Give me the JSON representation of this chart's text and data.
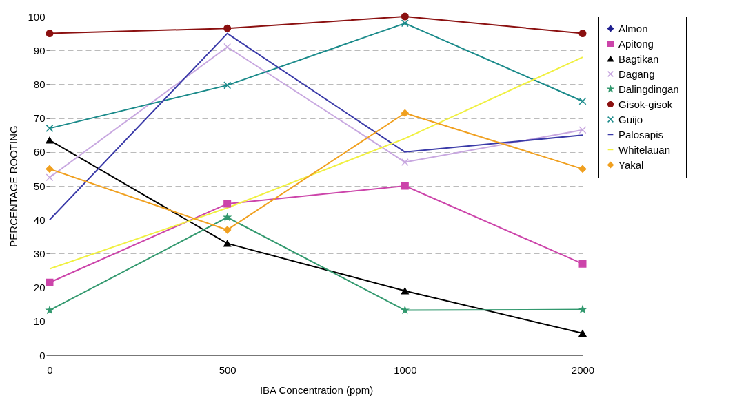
{
  "chart_data": {
    "type": "line",
    "xlabel": "IBA Concentration (ppm)",
    "ylabel": "PERCENTAGE ROOTING",
    "categories": [
      "0",
      "500",
      "1000",
      "2000"
    ],
    "ylim": [
      0,
      100
    ],
    "yticks": [
      0,
      10,
      20,
      30,
      40,
      50,
      60,
      70,
      80,
      90,
      100
    ],
    "grid": "y",
    "legend": "right",
    "series": [
      {
        "name": "Almon",
        "color": "#1f1f8f",
        "marker": "diamond",
        "values": [
          null,
          null,
          null,
          null
        ]
      },
      {
        "name": "Apitong",
        "color": "#cc44aa",
        "marker": "square",
        "values": [
          21.5,
          44.7,
          50,
          27
        ]
      },
      {
        "name": "Bagtikan",
        "color": "#000000",
        "marker": "triangle",
        "values": [
          63.5,
          33,
          19,
          6.5
        ]
      },
      {
        "name": "Dagang",
        "color": "#c8a8e0",
        "marker": "cross",
        "values": [
          52.5,
          91,
          57,
          66.5
        ]
      },
      {
        "name": "Dalingdingan",
        "color": "#33996f",
        "marker": "star",
        "values": [
          13.3,
          40.7,
          13.3,
          13.5
        ]
      },
      {
        "name": "Gisok-gisok",
        "color": "#8b1010",
        "marker": "circle",
        "values": [
          95,
          96.5,
          100,
          95
        ]
      },
      {
        "name": "Guijo",
        "color": "#1a8a8a",
        "marker": "cross",
        "values": [
          67,
          79.7,
          98,
          75
        ]
      },
      {
        "name": "Palosapis",
        "color": "#3a3aa8",
        "marker": "none",
        "values": [
          40,
          95,
          60,
          65
        ]
      },
      {
        "name": "Whitelauan",
        "color": "#f0f040",
        "marker": "none",
        "values": [
          25.5,
          43.5,
          64,
          88
        ]
      },
      {
        "name": "Yakal",
        "color": "#f0a020",
        "marker": "diamond",
        "values": [
          55,
          37,
          71.5,
          55
        ]
      }
    ]
  }
}
